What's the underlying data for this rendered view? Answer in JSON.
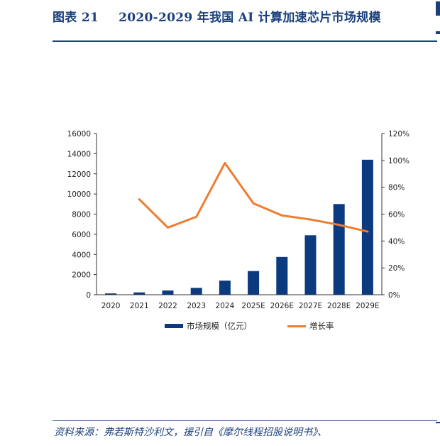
{
  "header": {
    "figure_number": "图表 21",
    "title": "2020-2029 年我国 AI 计算加速芯片市场规模"
  },
  "footer": {
    "source": "资料来源：弗若斯特沙利文，援引自《摩尔线程招股说明书》、"
  },
  "colors": {
    "accent": "#1a3f7a",
    "bar": "#0b3a7e",
    "line": "#ed7d31"
  },
  "chart_data": {
    "type": "bar",
    "categories": [
      "2020",
      "2021",
      "2022",
      "2023",
      "2024",
      "2025E",
      "2026E",
      "2027E",
      "2028E",
      "2029E"
    ],
    "series": [
      {
        "name": "市场规模（亿元）",
        "type": "bar",
        "axis": "left",
        "values": [
          130,
          230,
          420,
          680,
          1400,
          2350,
          3750,
          5900,
          9000,
          13400
        ]
      },
      {
        "name": "增长率",
        "type": "line",
        "axis": "right",
        "values": [
          null,
          0.71,
          0.5,
          0.58,
          0.98,
          0.68,
          0.59,
          0.56,
          0.52,
          0.47
        ]
      }
    ],
    "y_left": {
      "ylim": [
        0,
        16000
      ],
      "ticks": [
        "0",
        "2000",
        "4000",
        "6000",
        "8000",
        "10000",
        "12000",
        "14000",
        "16000"
      ]
    },
    "y_right": {
      "ylim": [
        0,
        1.2
      ],
      "ticks": [
        "0%",
        "20%",
        "40%",
        "60%",
        "80%",
        "100%",
        "120%"
      ]
    },
    "grid": false,
    "legend": {
      "position": "bottom",
      "items": [
        "市场规模（亿元）",
        "增长率"
      ]
    }
  }
}
